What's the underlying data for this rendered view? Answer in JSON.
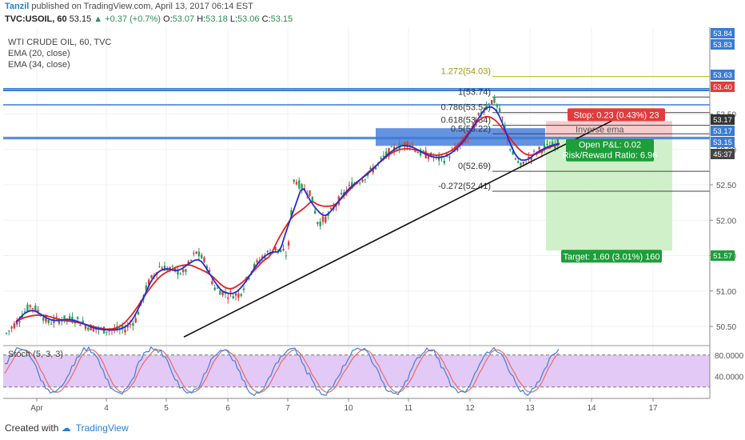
{
  "header": {
    "author": "Tanzil",
    "published": "published on TradingView.com, April 13, 2017 06:14 EST",
    "symbol": "TVC:USOIL, 60",
    "last": "53.15",
    "change": "+0.37 (+0.7%)",
    "open_label": "O:",
    "open": "53.07",
    "high_label": "H:",
    "high": "53.18",
    "low_label": "L:",
    "low": "53.06",
    "close_label": "C:",
    "close": "53.15"
  },
  "legend": {
    "title": "WTI CRUDE OIL, 60, TVC",
    "ema20": "EMA (20, close)",
    "ema34": "EMA (34, close)"
  },
  "footer": {
    "created_with": "Created with",
    "brand": "TradingView"
  },
  "colors": {
    "candle_up": "#2e9e5a",
    "candle_down": "#d64040",
    "ema20": "#1f2fd6",
    "ema34": "#e82020",
    "hline": "#3a7bd5",
    "zone": "#4a80dc",
    "stop_zone": "#f5c6c6",
    "target_zone": "#cbeec3",
    "stop_label": "#e23b3b",
    "target_label": "#1e9e3a",
    "stoch_bg": "#e3c9f5"
  },
  "chart_data": [
    {
      "type": "candlestick",
      "title": "WTI CRUDE OIL, 60, TVC",
      "x_tick_labels": [
        "Apr",
        "4",
        "5",
        "6",
        "7",
        "10",
        "11",
        "12",
        "13",
        "14",
        "17"
      ],
      "y_tick_labels": [
        "50.50",
        "51.00",
        "51.50",
        "52.00",
        "52.50",
        "53.00",
        "53.50"
      ],
      "y_range": [
        50.35,
        53.95
      ],
      "price_badges": [
        {
          "label": "53.84",
          "value": 53.84,
          "color": "#3a7bd5"
        },
        {
          "label": "53.83",
          "value": 53.83,
          "color": "#3a7bd5"
        },
        {
          "label": "53.63",
          "value": 53.63,
          "color": "#3a7bd5"
        },
        {
          "label": "53.40",
          "value": 53.4,
          "color": "#e23b3b"
        },
        {
          "label": "53.17",
          "value": 53.17,
          "color": "#333333"
        },
        {
          "label": "53.17",
          "value": 53.17,
          "color": "#3a7bd5"
        },
        {
          "label": "53.15",
          "value": 53.15,
          "color": "#3a7bd5"
        },
        {
          "label": "45:37",
          "value": 53.04,
          "color": "#444444"
        },
        {
          "label": "51.57",
          "value": 51.57,
          "color": "#1e9e3a"
        }
      ],
      "fibonacci": [
        {
          "label": "1.272(54.03)",
          "value": 54.03
        },
        {
          "label": "1(53.74)",
          "value": 53.74
        },
        {
          "label": "0.786(53.52)",
          "value": 53.52
        },
        {
          "label": "0.618(53.34)",
          "value": 53.34
        },
        {
          "label": "0.5(53.22)",
          "value": 53.22
        },
        {
          "label": "0(52.69)",
          "value": 52.69
        },
        {
          "label": "-0.272(52.41)",
          "value": 52.41
        }
      ],
      "horizontal_lines": [
        53.84,
        53.83,
        53.63,
        53.17,
        53.15
      ],
      "position": {
        "stop_label": "Stop: 0.23 (0.43%) 23",
        "open_pnl": "Open P&L: 0.02",
        "risk_reward": "Risk/Reward Ratio: 6.96",
        "target_label": "Target: 1.60 (3.01%) 160",
        "entry": 53.17,
        "stop": 53.4,
        "target": 51.57
      },
      "annotation": "Inverse ema",
      "trendline": {
        "from": {
          "x": "Apr 4",
          "y": 50.35
        },
        "to": {
          "x": "Apr 14",
          "y": 53.43
        }
      },
      "supply_zone": [
        53.05,
        53.3
      ],
      "series": [
        {
          "name": "EMA (20, close)",
          "values": [
            50.75,
            50.55,
            50.65,
            51.15,
            51.05,
            51.65,
            52.15,
            52.8,
            53.1,
            53.25,
            52.95,
            53.1
          ]
        },
        {
          "name": "EMA (34, close)",
          "values": [
            50.65,
            50.5,
            50.55,
            51.05,
            51.0,
            51.45,
            52.0,
            52.65,
            53.0,
            53.25,
            53.05,
            53.05
          ]
        }
      ]
    },
    {
      "type": "line",
      "title": "Stoch (5, 3, 3)",
      "y_tick_labels": [
        "80.0000",
        "40.0000"
      ],
      "y_range": [
        0,
        100
      ],
      "bands": [
        80,
        20
      ]
    }
  ]
}
